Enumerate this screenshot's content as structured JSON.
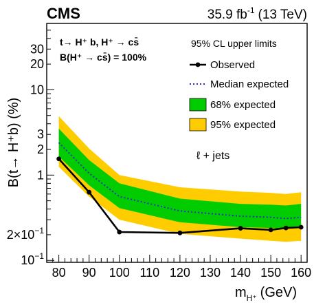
{
  "chart_data": {
    "type": "line",
    "experiment": "CMS",
    "luminosity_label": "35.9 fb",
    "luminosity_exp": "-1",
    "energy_label": "(13 TeV)",
    "process_line1": "t→ H⁺ b, H⁺ → cs̄",
    "process_line2": "B(H⁺ → cs̄) = 100%",
    "channel_label": "ℓ + jets",
    "ylabel": "B(t→ H⁺b) (%)",
    "xlabel_main": "m",
    "xlabel_sub": "H⁺",
    "xlabel_unit": "(GeV)",
    "y_scale": "log",
    "xlim": [
      76,
      162
    ],
    "ylim": [
      0.095,
      60
    ],
    "x_ticks": [
      80,
      90,
      100,
      110,
      120,
      130,
      140,
      150,
      160
    ],
    "y_tick_labels": [
      {
        "value": 0.1,
        "label": "10",
        "exp": "−1"
      },
      {
        "value": 0.2,
        "label": "2×10",
        "exp": "−1"
      },
      {
        "value": 1,
        "label": "1",
        "exp": ""
      },
      {
        "value": 2,
        "label": "2",
        "exp": ""
      },
      {
        "value": 3,
        "label": "3",
        "exp": ""
      },
      {
        "value": 10,
        "label": "10",
        "exp": ""
      },
      {
        "value": 20,
        "label": "20",
        "exp": ""
      },
      {
        "value": 30,
        "label": "30",
        "exp": ""
      }
    ],
    "legend_title": "95% CL upper limits",
    "legend_placement": "top-right",
    "x": [
      80,
      90,
      100,
      120,
      140,
      150,
      155,
      160
    ],
    "observed": [
      1.55,
      0.63,
      0.215,
      0.21,
      0.238,
      0.228,
      0.24,
      0.245
    ],
    "median_expected": [
      2.4,
      1.05,
      0.56,
      0.38,
      0.33,
      0.32,
      0.31,
      0.32
    ],
    "band68": {
      "low": [
        1.65,
        0.76,
        0.41,
        0.28,
        0.245,
        0.24,
        0.235,
        0.24
      ],
      "high": [
        3.5,
        1.5,
        0.8,
        0.53,
        0.46,
        0.45,
        0.44,
        0.46
      ]
    },
    "band95": {
      "low": [
        1.25,
        0.56,
        0.3,
        0.205,
        0.18,
        0.17,
        0.165,
        0.17
      ],
      "high": [
        4.9,
        2.05,
        1.0,
        0.72,
        0.64,
        0.62,
        0.6,
        0.63
      ]
    },
    "legend": [
      {
        "key": "observed",
        "label": "Observed",
        "color": "#000000"
      },
      {
        "key": "median",
        "label": "Median expected",
        "color": "#2b2bcc"
      },
      {
        "key": "band68",
        "label": "68% expected",
        "color": "#00cc00"
      },
      {
        "key": "band95",
        "label": "95% expected",
        "color": "#ffcc00"
      }
    ]
  }
}
